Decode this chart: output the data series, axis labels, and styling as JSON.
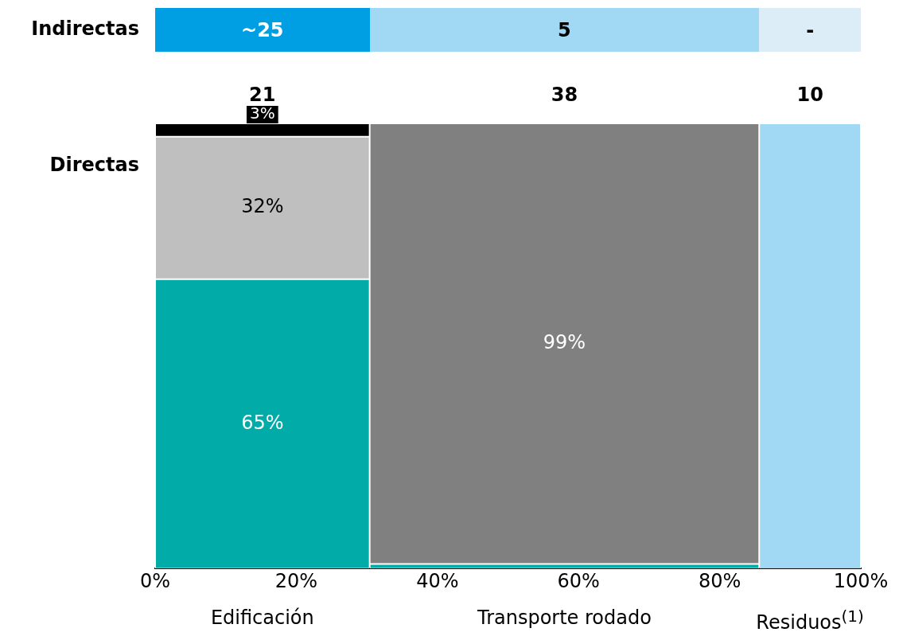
{
  "chart_data": [
    {
      "type": "other",
      "ylabel": "Indirectas",
      "annotations": [
        "~25",
        "5",
        "-"
      ],
      "colors": [
        "#009fe3",
        "#a1d8f4",
        "#dcedf8"
      ]
    },
    {
      "type": "bar",
      "stacked": true,
      "ylabel": "Directas",
      "x": [
        15.2,
        58.0,
        92.8
      ],
      "xlim": [
        0,
        100
      ],
      "ylim": [
        0,
        100
      ],
      "tick_labels": "x",
      "xticks": [
        {
          "value": 0,
          "label": "0%"
        },
        {
          "value": 20,
          "label": "20%"
        },
        {
          "value": 40,
          "label": "40%"
        },
        {
          "value": 60,
          "label": "60%"
        },
        {
          "value": 80,
          "label": "80%"
        },
        {
          "value": 100,
          "label": "100%"
        }
      ],
      "annotations": [
        {
          "text": "21",
          "x": 15.2,
          "y": 100
        },
        {
          "text": "38",
          "x": 58.0,
          "y": 100
        },
        {
          "text": "10",
          "x": 92.8,
          "y": 100
        },
        "Edificación",
        "Transporte rodado",
        "Residuos$^{(1)}$"
      ],
      "series": [
        {
          "color": "#00aba8",
          "values": [
            65,
            1,
            null
          ],
          "value_labels": [
            "65%",
            null,
            null
          ]
        },
        {
          "color": "#bfbfbf",
          "values": [
            32,
            null,
            null
          ],
          "value_labels": [
            "32%",
            null,
            null
          ]
        },
        {
          "color": "#000000",
          "values": [
            3,
            null,
            null
          ],
          "value_labels": [
            "3%",
            null,
            null
          ]
        },
        {
          "color": "#808080",
          "values": [
            null,
            99,
            null
          ],
          "value_labels": [
            null,
            "99%",
            null
          ]
        },
        {
          "color": "#a1d8f4",
          "values": [
            null,
            null,
            100
          ],
          "value_labels": [
            null,
            null,
            null
          ]
        }
      ]
    }
  ]
}
